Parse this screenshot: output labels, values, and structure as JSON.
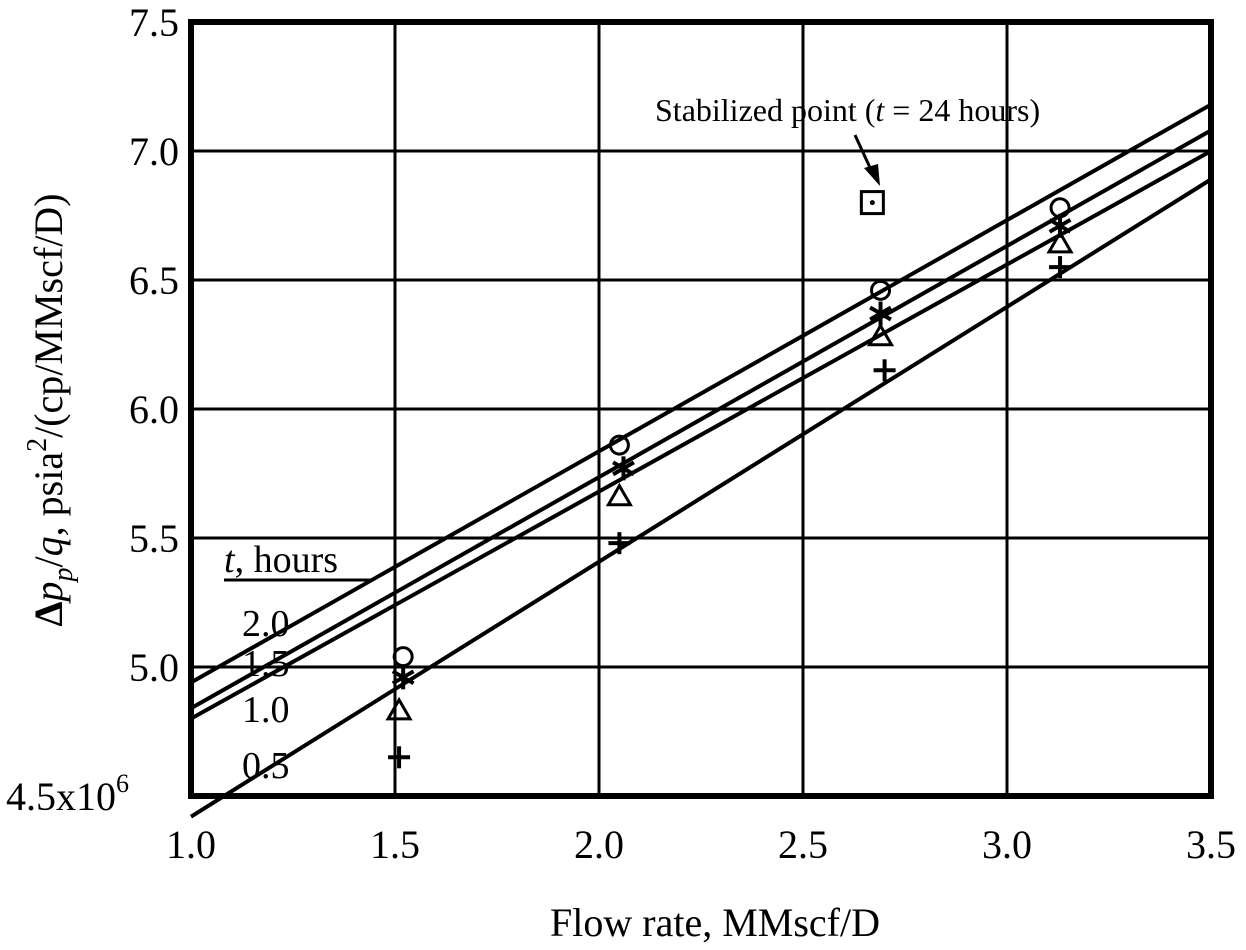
{
  "chart_data": {
    "type": "scatter",
    "xlabel": "Flow rate, MMscf/D",
    "ylabel_parts": {
      "delta": "Δ",
      "p": "p",
      "sub": "p",
      "rest1": "/",
      "q": "q",
      "rest2": ", psia",
      "sup": "2",
      "rest3": "/(cp/MMscf/D)"
    },
    "xlim": [
      1.0,
      3.5
    ],
    "ylim": [
      4.5,
      7.5
    ],
    "x_ticks": [
      {
        "value": 1.0,
        "label": "1.0"
      },
      {
        "value": 1.5,
        "label": "1.5"
      },
      {
        "value": 2.0,
        "label": "2.0"
      },
      {
        "value": 2.5,
        "label": "2.5"
      },
      {
        "value": 3.0,
        "label": "3.0"
      },
      {
        "value": 3.5,
        "label": "3.5"
      }
    ],
    "y_ticks": [
      {
        "value": 5.0,
        "label": "5.0"
      },
      {
        "value": 5.5,
        "label": "5.5"
      },
      {
        "value": 6.0,
        "label": "6.0"
      },
      {
        "value": 6.5,
        "label": "6.5"
      },
      {
        "value": 7.0,
        "label": "7.0"
      },
      {
        "value": 7.5,
        "label": "7.5"
      }
    ],
    "y_bottom_label": {
      "base": "4.5x10",
      "exp": "6"
    },
    "grid": true,
    "legend_title": {
      "t": "t",
      "rest": ", hours"
    },
    "series": [
      {
        "name": "2.0",
        "marker": "circle",
        "points": [
          [
            1.52,
            5.04
          ],
          [
            2.05,
            5.86
          ],
          [
            2.69,
            6.46
          ],
          [
            3.13,
            6.78
          ]
        ],
        "fit": [
          [
            1.0,
            4.94
          ],
          [
            3.5,
            7.18
          ]
        ]
      },
      {
        "name": "1.5",
        "marker": "star",
        "points": [
          [
            1.52,
            4.96
          ],
          [
            2.06,
            5.77
          ],
          [
            2.69,
            6.37
          ],
          [
            3.13,
            6.71
          ]
        ],
        "fit": [
          [
            1.0,
            4.84
          ],
          [
            3.5,
            7.08
          ]
        ]
      },
      {
        "name": "1.0",
        "marker": "triangle",
        "points": [
          [
            1.51,
            4.83
          ],
          [
            2.05,
            5.66
          ],
          [
            2.69,
            6.28
          ],
          [
            3.13,
            6.64
          ]
        ],
        "fit": [
          [
            1.0,
            4.8
          ],
          [
            3.5,
            7.0
          ]
        ]
      },
      {
        "name": "0.5",
        "marker": "plus",
        "points": [
          [
            1.51,
            4.65
          ],
          [
            2.05,
            5.48
          ],
          [
            2.7,
            6.15
          ],
          [
            3.13,
            6.55
          ]
        ],
        "fit": [
          [
            1.0,
            4.42
          ],
          [
            3.5,
            6.89
          ]
        ]
      }
    ],
    "stabilized_point": {
      "x": 2.67,
      "y": 6.8,
      "marker": "square-dot",
      "annotation": {
        "before": "Stabilized point (",
        "t": "t",
        "after": " = 24 hours)"
      }
    }
  }
}
